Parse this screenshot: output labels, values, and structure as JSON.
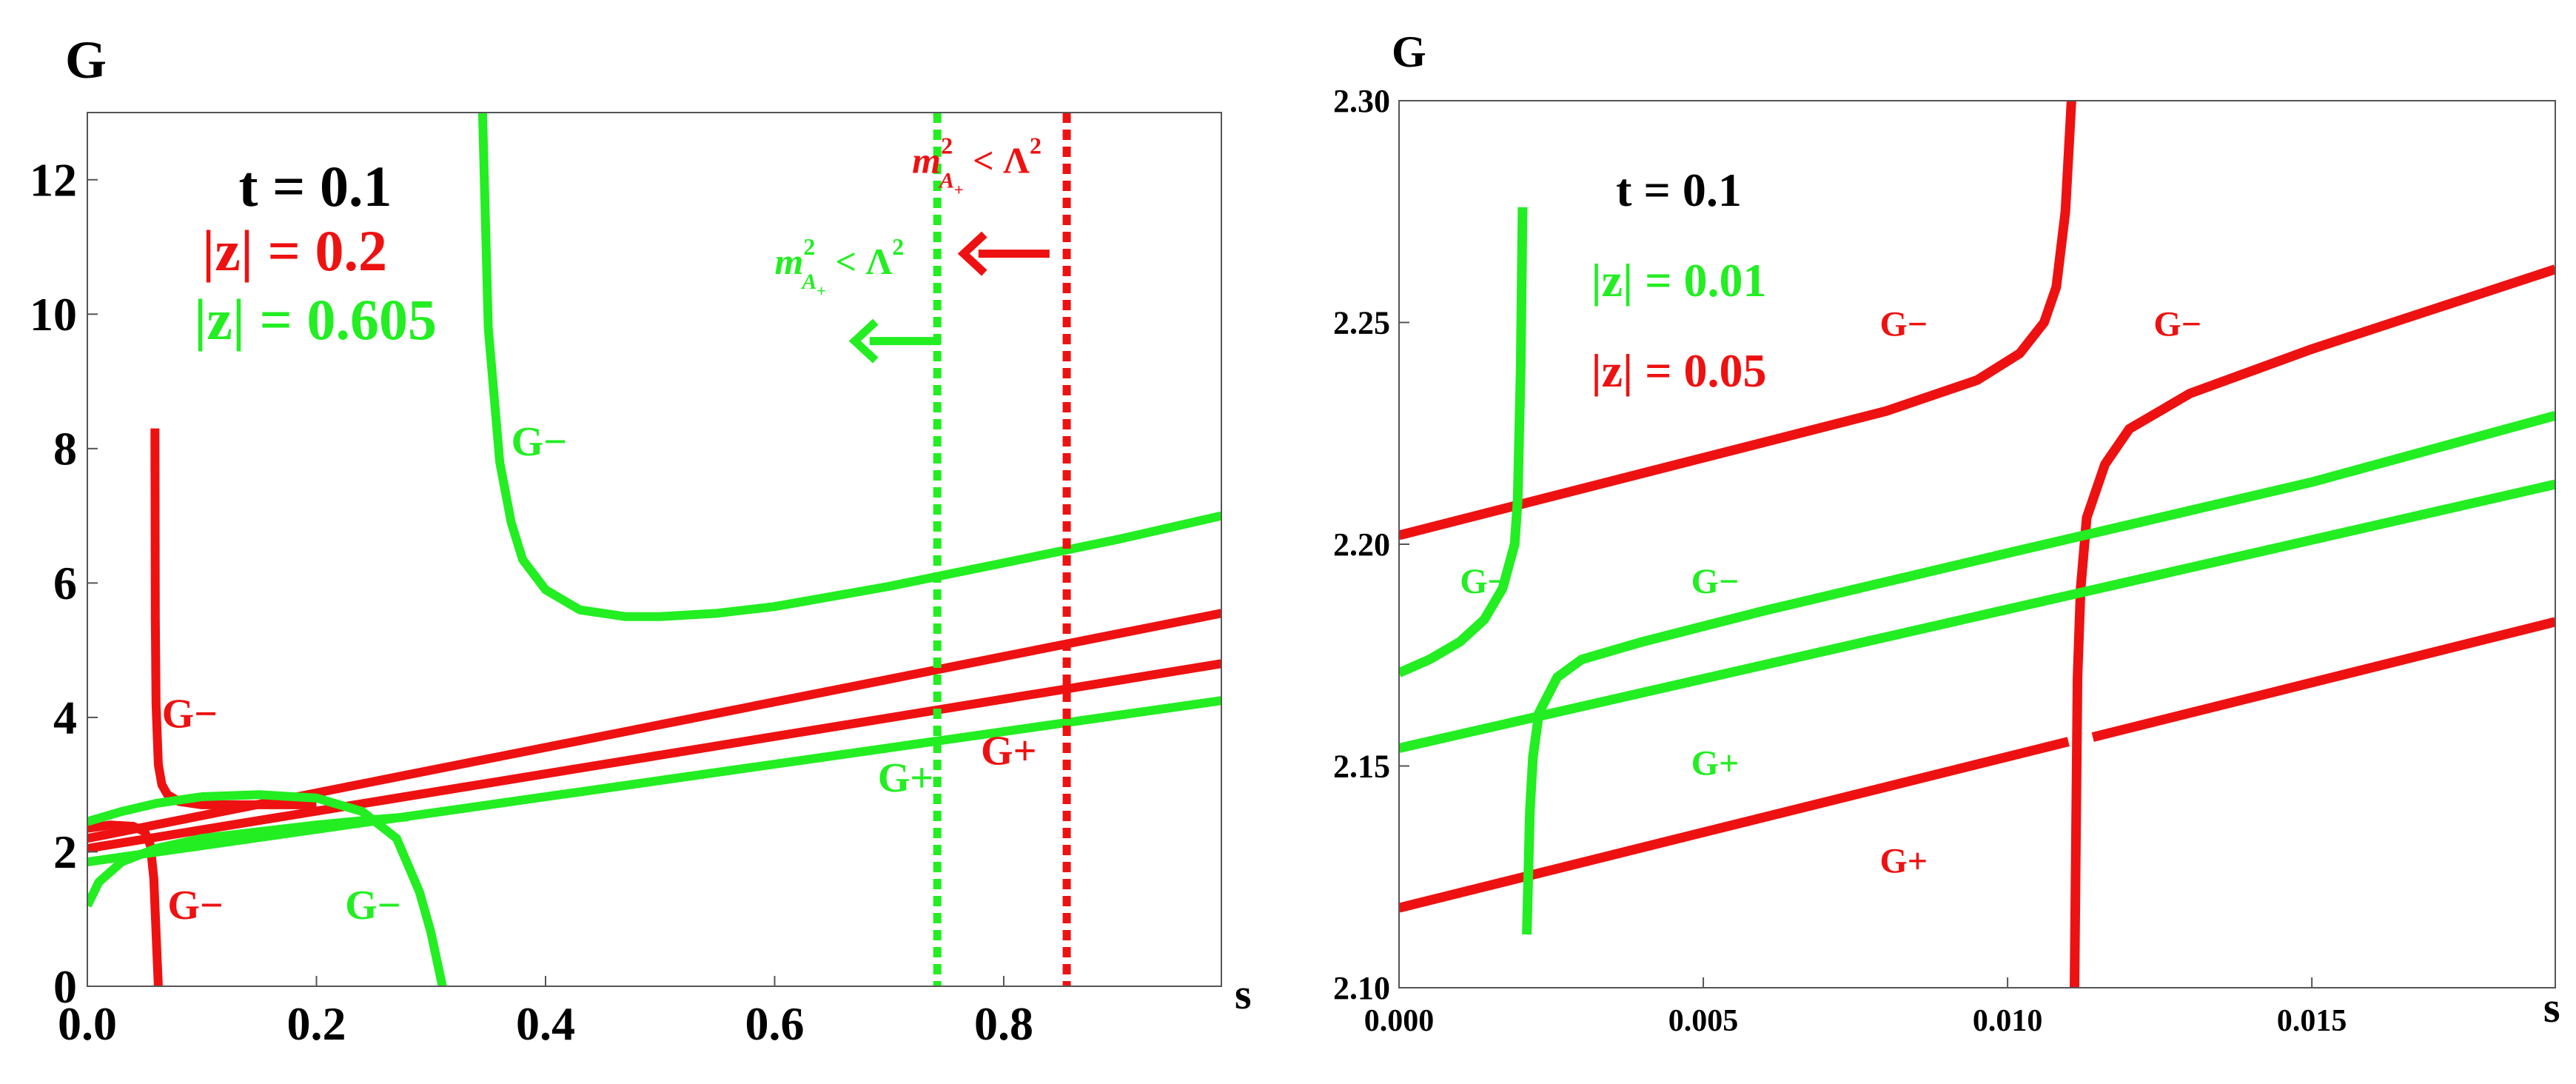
{
  "colors": {
    "red": "#ee1111",
    "green": "#22ee22",
    "black": "#000000",
    "axis": "#555555"
  },
  "chart_data": [
    {
      "type": "line",
      "ylabel": "G",
      "xlabel": "s",
      "xlim": [
        0,
        0.99
      ],
      "ylim": [
        0,
        13
      ],
      "xticks": [
        0.0,
        0.2,
        0.4,
        0.6,
        0.8
      ],
      "xtick_labels": [
        "0.0",
        "0.2",
        "0.4",
        "0.6",
        "0.8"
      ],
      "yticks": [
        0,
        2,
        4,
        6,
        8,
        10,
        12
      ],
      "ytick_labels": [
        "0",
        "2",
        "4",
        "6",
        "8",
        "10",
        "12"
      ],
      "legend": [
        {
          "text": "t = 0.1",
          "color": "black"
        },
        {
          "text": "|z| = 0.2",
          "color": "red"
        },
        {
          "text": "|z| = 0.605",
          "color": "green"
        }
      ],
      "series": [
        {
          "name": "red G+ lower",
          "color": "red",
          "x": [
            0,
            0.99
          ],
          "y": [
            2.05,
            4.8
          ]
        },
        {
          "name": "red G+ upper",
          "color": "red",
          "x": [
            0,
            0.99
          ],
          "y": [
            2.2,
            5.55
          ]
        },
        {
          "name": "red G- pole branch",
          "color": "red",
          "x": [
            0.059,
            0.0593,
            0.06,
            0.062,
            0.065,
            0.07,
            0.08,
            0.1,
            0.14,
            0.2
          ],
          "y": [
            8.3,
            5.5,
            4.2,
            3.3,
            3.0,
            2.85,
            2.75,
            2.7,
            2.7,
            2.7
          ]
        },
        {
          "name": "red G- low branch",
          "color": "red",
          "x": [
            0,
            0.02,
            0.04,
            0.05,
            0.055,
            0.058,
            0.06,
            0.062
          ],
          "y": [
            2.35,
            2.4,
            2.38,
            2.3,
            2.1,
            1.6,
            0.8,
            0
          ]
        },
        {
          "name": "green G+",
          "color": "green",
          "x": [
            0,
            0.99
          ],
          "y": [
            1.85,
            4.25
          ]
        },
        {
          "name": "green G- wide",
          "color": "green",
          "x": [
            0,
            0.03,
            0.06,
            0.1,
            0.15,
            0.2,
            0.24,
            0.27,
            0.29,
            0.3,
            0.31
          ],
          "y": [
            2.45,
            2.6,
            2.72,
            2.82,
            2.85,
            2.8,
            2.6,
            2.2,
            1.4,
            0.8,
            0
          ]
        },
        {
          "name": "green G- left",
          "color": "green",
          "x": [
            0,
            0.01,
            0.03,
            0.06,
            0.1,
            0.15,
            0.2,
            0.25,
            0.28
          ],
          "y": [
            1.2,
            1.55,
            1.85,
            2.05,
            2.2,
            2.3,
            2.4,
            2.48,
            2.52
          ]
        },
        {
          "name": "green G- pole",
          "color": "green",
          "x": [
            0.345,
            0.35,
            0.36,
            0.37,
            0.38,
            0.4,
            0.43,
            0.47,
            0.5,
            0.55,
            0.6,
            0.7,
            0.8,
            0.9,
            0.99
          ],
          "y": [
            13,
            9.8,
            7.8,
            6.9,
            6.35,
            5.9,
            5.6,
            5.5,
            5.5,
            5.55,
            5.65,
            5.95,
            6.3,
            6.65,
            7.0
          ]
        }
      ],
      "vlines": [
        {
          "x": 0.742,
          "color": "green",
          "style": "dotted"
        },
        {
          "x": 0.855,
          "color": "red",
          "style": "dotted"
        }
      ],
      "arrows": [
        {
          "from": [
            0.84,
            10.9
          ],
          "to": [
            0.765,
            10.9
          ],
          "color": "red"
        },
        {
          "from": [
            0.745,
            9.6
          ],
          "to": [
            0.67,
            9.6
          ],
          "color": "green"
        }
      ],
      "annotations": [
        {
          "text": "G−",
          "x": 0.37,
          "y": 7.9,
          "color": "green"
        },
        {
          "text": "G−",
          "x": 0.065,
          "y": 3.85,
          "color": "red"
        },
        {
          "text": "G−",
          "x": 0.07,
          "y": 1.0,
          "color": "red"
        },
        {
          "text": "G−",
          "x": 0.225,
          "y": 1.0,
          "color": "green"
        },
        {
          "text": "G+",
          "x": 0.69,
          "y": 2.9,
          "color": "green"
        },
        {
          "text": "G+",
          "x": 0.78,
          "y": 3.3,
          "color": "red"
        }
      ],
      "threshold_labels": [
        {
          "base": "m",
          "sup": "2",
          "sub": "A",
          "subsub": "+",
          "tail": " < Λ",
          "tailsup": "2",
          "color": "red",
          "x": 0.72,
          "y": 12.1
        },
        {
          "base": "m",
          "sup": "2",
          "sub": "A",
          "subsub": "+",
          "tail": " < Λ",
          "tailsup": "2",
          "color": "green",
          "x": 0.6,
          "y": 10.6
        }
      ]
    },
    {
      "type": "line",
      "ylabel": "G",
      "xlabel": "s",
      "xlim": [
        0,
        0.019
      ],
      "ylim": [
        2.1,
        2.3
      ],
      "xticks": [
        0.0,
        0.005,
        0.01,
        0.015
      ],
      "xtick_labels": [
        "0.000",
        "0.005",
        "0.010",
        "0.015"
      ],
      "yticks": [
        2.1,
        2.15,
        2.2,
        2.25,
        2.3
      ],
      "ytick_labels": [
        "2.10",
        "2.15",
        "2.20",
        "2.25",
        "2.30"
      ],
      "legend": [
        {
          "text": "t = 0.1",
          "color": "black"
        },
        {
          "text": "|z| = 0.01",
          "color": "green"
        },
        {
          "text": "|z| = 0.05",
          "color": "red"
        }
      ],
      "series": [
        {
          "name": "red G+ a",
          "color": "red",
          "x": [
            0,
            0.011
          ],
          "y": [
            2.118,
            2.1555
          ]
        },
        {
          "name": "red G+ b",
          "color": "red",
          "x": [
            0.0114,
            0.019
          ],
          "y": [
            2.1565,
            2.1825
          ]
        },
        {
          "name": "red G- left",
          "color": "red",
          "x": [
            0,
            0.004,
            0.008,
            0.0095,
            0.0102,
            0.0106,
            0.0108,
            0.01095,
            0.01105
          ],
          "y": [
            2.202,
            2.216,
            2.23,
            2.237,
            2.243,
            2.25,
            2.258,
            2.275,
            2.3
          ]
        },
        {
          "name": "red G- right",
          "color": "red",
          "x": [
            0.0111,
            0.01115,
            0.0112,
            0.0113,
            0.0116,
            0.012,
            0.013,
            0.015,
            0.017,
            0.019
          ],
          "y": [
            2.1,
            2.17,
            2.19,
            2.206,
            2.218,
            2.226,
            2.234,
            2.244,
            2.253,
            2.262
          ]
        },
        {
          "name": "green G+",
          "color": "green",
          "x": [
            0,
            0.019
          ],
          "y": [
            2.154,
            2.2135
          ]
        },
        {
          "name": "green G- left",
          "color": "green",
          "x": [
            0,
            0.0005,
            0.001,
            0.0014,
            0.0017,
            0.0019,
            0.00195,
            0.002,
            0.00203
          ],
          "y": [
            2.171,
            2.174,
            2.178,
            2.183,
            2.19,
            2.2,
            2.21,
            2.24,
            2.276
          ]
        },
        {
          "name": "green G- right",
          "color": "green",
          "x": [
            0.0021,
            0.00215,
            0.0022,
            0.0023,
            0.0026,
            0.003,
            0.004,
            0.006,
            0.01,
            0.015,
            0.019
          ],
          "y": [
            2.112,
            2.14,
            2.152,
            2.162,
            2.17,
            2.174,
            2.178,
            2.185,
            2.198,
            2.214,
            2.229
          ]
        }
      ],
      "annotations": [
        {
          "text": "G−",
          "x": 0.0079,
          "y": 2.247,
          "color": "red"
        },
        {
          "text": "G−",
          "x": 0.0124,
          "y": 2.247,
          "color": "red"
        },
        {
          "text": "G−",
          "x": 0.001,
          "y": 2.189,
          "color": "green"
        },
        {
          "text": "G−",
          "x": 0.0048,
          "y": 2.189,
          "color": "green"
        },
        {
          "text": "G+",
          "x": 0.0048,
          "y": 2.148,
          "color": "green"
        },
        {
          "text": "G+",
          "x": 0.0079,
          "y": 2.126,
          "color": "red"
        }
      ]
    }
  ]
}
